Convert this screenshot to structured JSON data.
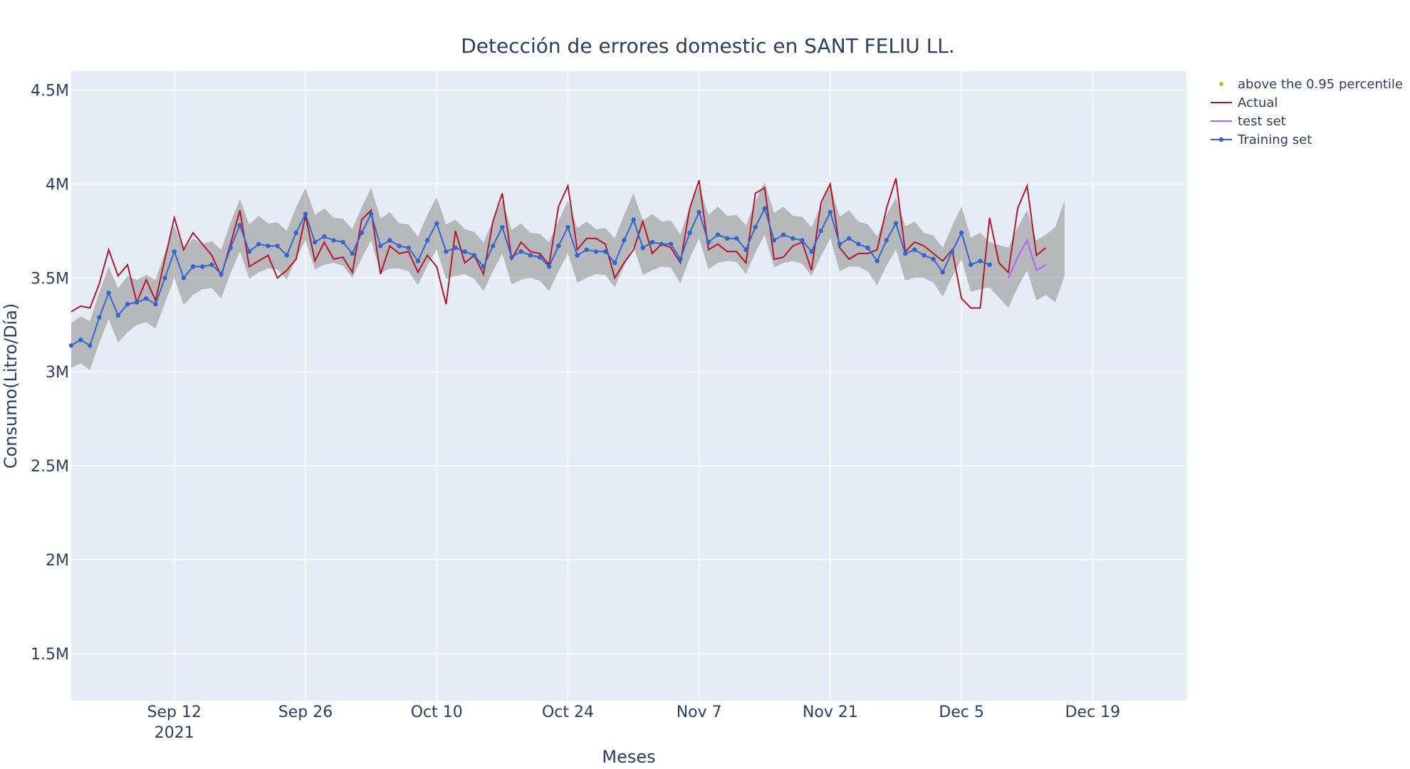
{
  "chart_data": {
    "type": "line",
    "title": "Detección de errores domestic en SANT FELIU LL.",
    "xlabel": "Meses",
    "ylabel": "Consumo(Litro/Día)",
    "x_start": "2021-09-01",
    "xlim": [
      "2021-09-01",
      "2021-12-29"
    ],
    "ylim": [
      1250000,
      4600000
    ],
    "grid": true,
    "legend_position": "top-right",
    "x_ticks": [
      {
        "date": "2021-09-12",
        "label": "Sep 12",
        "sublabel": "2021"
      },
      {
        "date": "2021-09-26",
        "label": "Sep 26"
      },
      {
        "date": "2021-10-10",
        "label": "Oct 10"
      },
      {
        "date": "2021-10-24",
        "label": "Oct 24"
      },
      {
        "date": "2021-11-07",
        "label": "Nov 7"
      },
      {
        "date": "2021-11-21",
        "label": "Nov 21"
      },
      {
        "date": "2021-12-05",
        "label": "Dec 5"
      },
      {
        "date": "2021-12-19",
        "label": "Dec 19"
      }
    ],
    "y_ticks": [
      {
        "value": 1500000,
        "label": "1.5M"
      },
      {
        "value": 2000000,
        "label": "2M"
      },
      {
        "value": 2500000,
        "label": "2.5M"
      },
      {
        "value": 3000000,
        "label": "3M"
      },
      {
        "value": 3500000,
        "label": "3.5M"
      },
      {
        "value": 4000000,
        "label": "4M"
      },
      {
        "value": 4500000,
        "label": "4.5M"
      }
    ],
    "series": [
      {
        "name": "above the 0.95 percentile",
        "color": "#9acd32",
        "style": "markers",
        "values": []
      },
      {
        "name": "Actual",
        "color": "#b2182b",
        "style": "line",
        "values": [
          3320000,
          3350000,
          3340000,
          3470000,
          3650000,
          3510000,
          3570000,
          3370000,
          3490000,
          3380000,
          3600000,
          3820000,
          3650000,
          3740000,
          3680000,
          3620000,
          3510000,
          3680000,
          3860000,
          3560000,
          3590000,
          3620000,
          3500000,
          3540000,
          3600000,
          3830000,
          3590000,
          3690000,
          3600000,
          3610000,
          3530000,
          3810000,
          3860000,
          3520000,
          3670000,
          3630000,
          3640000,
          3530000,
          3620000,
          3560000,
          3360000,
          3750000,
          3580000,
          3620000,
          3520000,
          3800000,
          3950000,
          3600000,
          3690000,
          3640000,
          3630000,
          3570000,
          3880000,
          3990000,
          3650000,
          3710000,
          3710000,
          3680000,
          3500000,
          3580000,
          3650000,
          3800000,
          3630000,
          3680000,
          3660000,
          3580000,
          3870000,
          4020000,
          3650000,
          3680000,
          3640000,
          3640000,
          3580000,
          3950000,
          3980000,
          3600000,
          3610000,
          3670000,
          3690000,
          3540000,
          3900000,
          4000000,
          3660000,
          3600000,
          3630000,
          3630000,
          3650000,
          3870000,
          4030000,
          3640000,
          3690000,
          3670000,
          3630000,
          3590000,
          3650000,
          3390000,
          3340000,
          3340000,
          3820000,
          3580000,
          3530000,
          3870000,
          3990000,
          3620000,
          3660000
        ]
      },
      {
        "name": "test set",
        "color": "#ab63fa",
        "style": "line",
        "x_offset": 100,
        "values": [
          3500000,
          3610000,
          3700000,
          3540000,
          3570000
        ]
      },
      {
        "name": "Training set",
        "color": "#3366cc",
        "style": "lines+markers",
        "values": [
          3140000,
          3170000,
          3140000,
          3290000,
          3420000,
          3300000,
          3360000,
          3370000,
          3390000,
          3360000,
          3500000,
          3640000,
          3500000,
          3560000,
          3560000,
          3570000,
          3520000,
          3660000,
          3780000,
          3640000,
          3680000,
          3670000,
          3670000,
          3620000,
          3740000,
          3840000,
          3690000,
          3720000,
          3700000,
          3690000,
          3630000,
          3740000,
          3840000,
          3670000,
          3700000,
          3670000,
          3660000,
          3590000,
          3700000,
          3790000,
          3640000,
          3660000,
          3640000,
          3620000,
          3560000,
          3670000,
          3770000,
          3610000,
          3640000,
          3620000,
          3610000,
          3560000,
          3670000,
          3770000,
          3620000,
          3650000,
          3640000,
          3640000,
          3580000,
          3700000,
          3810000,
          3660000,
          3690000,
          3680000,
          3680000,
          3600000,
          3740000,
          3850000,
          3690000,
          3730000,
          3710000,
          3710000,
          3650000,
          3770000,
          3870000,
          3700000,
          3730000,
          3710000,
          3700000,
          3640000,
          3750000,
          3850000,
          3680000,
          3710000,
          3680000,
          3660000,
          3590000,
          3700000,
          3790000,
          3630000,
          3650000,
          3620000,
          3600000,
          3530000,
          3640000,
          3740000,
          3570000,
          3590000,
          3570000
        ]
      }
    ]
  }
}
